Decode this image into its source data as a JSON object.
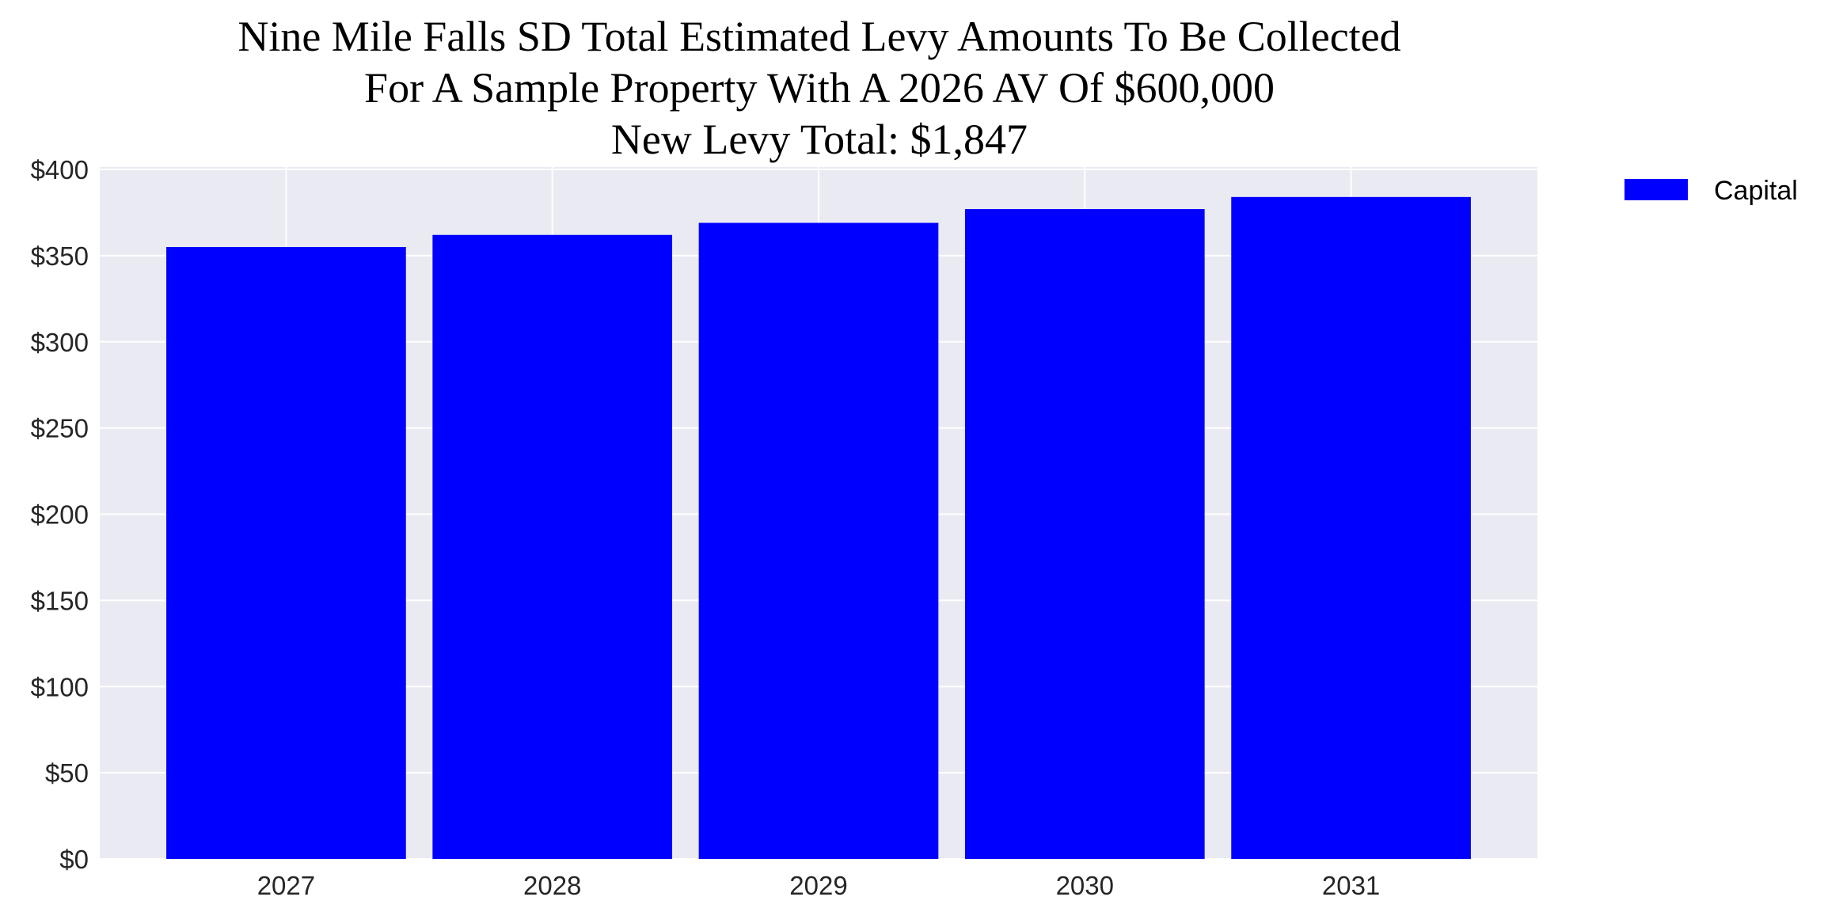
{
  "chart_data": {
    "type": "bar",
    "title_lines": [
      "Nine Mile Falls SD Total Estimated Levy Amounts To Be Collected",
      "For A Sample Property With A 2026 AV Of $600,000",
      "New Levy Total: $1,847"
    ],
    "categories": [
      "2027",
      "2028",
      "2029",
      "2030",
      "2031"
    ],
    "series": [
      {
        "name": "Capital",
        "values": [
          355,
          362,
          369,
          377,
          384
        ],
        "color": "#0000ff"
      }
    ],
    "xlabel": "",
    "ylabel": "",
    "ylim": [
      0,
      403
    ],
    "yticks": [
      0,
      50,
      100,
      150,
      200,
      250,
      300,
      350,
      400
    ],
    "ytick_labels": [
      "$0",
      "$50",
      "$100",
      "$150",
      "$200",
      "$250",
      "$300",
      "$350",
      "$400"
    ],
    "grid": true,
    "background": "#eaeaf2",
    "legend_position": "outside-top-right"
  }
}
